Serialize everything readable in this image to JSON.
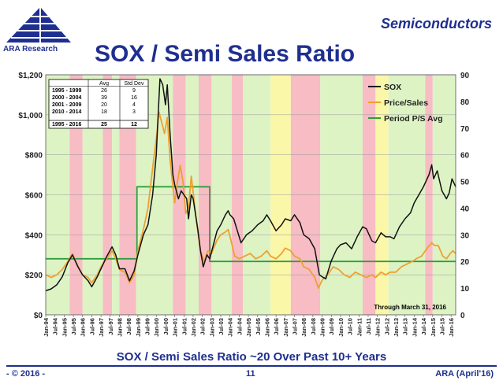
{
  "header": {
    "logo_text": "ARA Research",
    "section": "Semiconductors",
    "title": "SOX / Semi Sales Ratio"
  },
  "subtitle": "SOX / Semi Sales Ratio ~20 Over Past 10+ Years",
  "footer": {
    "left": "- © 2016 -",
    "page": "11",
    "right": "ARA (April'16)"
  },
  "colors": {
    "brand": "#1f2f8f",
    "sox": "#111111",
    "price_sales": "#f0a030",
    "period_avg": "#2e9e3e",
    "band_green": "#ddf3c4",
    "band_pink": "#f7bcc4",
    "band_yellow": "#fbf7a8"
  },
  "stats_table": {
    "headers": [
      "",
      "Avg",
      "Std Dev"
    ],
    "rows": [
      [
        "1995 - 1999",
        "26",
        "9"
      ],
      [
        "2000 - 2004",
        "39",
        "16"
      ],
      [
        "2001 - 2009",
        "20",
        "4"
      ],
      [
        "2010 - 2014",
        "18",
        "3"
      ],
      [
        "1995 - 2016",
        "25",
        "12"
      ]
    ]
  },
  "chart_data": {
    "type": "line",
    "note": "Through March 31, 2016",
    "x_range": [
      1994.0,
      2016.25
    ],
    "y_left": {
      "label": "",
      "range": [
        0,
        1200
      ],
      "ticks": [
        "$0",
        "$200",
        "$400",
        "$600",
        "$800",
        "$1,000",
        "$1,200"
      ]
    },
    "y_right": {
      "label": "",
      "range": [
        0,
        90
      ],
      "ticks": [
        "0",
        "10",
        "20",
        "30",
        "40",
        "50",
        "60",
        "70",
        "80",
        "90"
      ]
    },
    "x_ticks": [
      "Jan-94",
      "Jul-94",
      "Jan-95",
      "Jul-95",
      "Jan-96",
      "Jul-96",
      "Jan-97",
      "Jul-97",
      "Jan-98",
      "Jul-98",
      "Jan-99",
      "Jul-99",
      "Jan-00",
      "Jul-00",
      "Jan-01",
      "Jul-01",
      "Jan-02",
      "Jul-02",
      "Jan-03",
      "Jul-03",
      "Jan-04",
      "Jul-04",
      "Jan-05",
      "Jul-05",
      "Jan-06",
      "Jul-06",
      "Jan-07",
      "Jul-07",
      "Jan-08",
      "Jul-08",
      "Jan-09",
      "Jul-09",
      "Jan-10",
      "Jul-10",
      "Jan-11",
      "Jul-11",
      "Jan-12",
      "Jul-12",
      "Jan-13",
      "Jul-13",
      "Jan-14",
      "Jul-14",
      "Jan-15",
      "Jul-15",
      "Jan-16"
    ],
    "legend": [
      "SOX",
      "Price/Sales",
      "Period P/S Avg"
    ],
    "legend_position": "top-right",
    "bands": [
      {
        "from": 1994.0,
        "to": 1995.3,
        "kind": "green"
      },
      {
        "from": 1995.3,
        "to": 1996.0,
        "kind": "pink"
      },
      {
        "from": 1996.0,
        "to": 1997.1,
        "kind": "green"
      },
      {
        "from": 1997.1,
        "to": 1997.6,
        "kind": "pink"
      },
      {
        "from": 1997.6,
        "to": 1998.0,
        "kind": "green"
      },
      {
        "from": 1998.0,
        "to": 1998.9,
        "kind": "pink"
      },
      {
        "from": 1998.9,
        "to": 2000.9,
        "kind": "green"
      },
      {
        "from": 2000.9,
        "to": 2001.6,
        "kind": "pink"
      },
      {
        "from": 2001.6,
        "to": 2002.3,
        "kind": "green"
      },
      {
        "from": 2002.3,
        "to": 2003.0,
        "kind": "pink"
      },
      {
        "from": 2003.0,
        "to": 2004.1,
        "kind": "green"
      },
      {
        "from": 2004.1,
        "to": 2004.7,
        "kind": "pink"
      },
      {
        "from": 2004.7,
        "to": 2006.2,
        "kind": "green"
      },
      {
        "from": 2006.2,
        "to": 2007.3,
        "kind": "yellow"
      },
      {
        "from": 2007.3,
        "to": 2008.9,
        "kind": "pink"
      },
      {
        "from": 2008.9,
        "to": 2011.2,
        "kind": "green"
      },
      {
        "from": 2011.2,
        "to": 2011.9,
        "kind": "pink"
      },
      {
        "from": 2011.9,
        "to": 2012.6,
        "kind": "yellow"
      },
      {
        "from": 2012.6,
        "to": 2014.6,
        "kind": "green"
      },
      {
        "from": 2014.6,
        "to": 2015.0,
        "kind": "pink"
      },
      {
        "from": 2015.0,
        "to": 2016.25,
        "kind": "green"
      }
    ],
    "series": [
      {
        "name": "SOX",
        "axis": "left",
        "points": [
          [
            1994.0,
            120
          ],
          [
            1994.3,
            130
          ],
          [
            1994.6,
            150
          ],
          [
            1994.9,
            190
          ],
          [
            1995.2,
            260
          ],
          [
            1995.45,
            300
          ],
          [
            1995.75,
            240
          ],
          [
            1996.0,
            200
          ],
          [
            1996.3,
            170
          ],
          [
            1996.5,
            140
          ],
          [
            1996.8,
            190
          ],
          [
            1997.0,
            230
          ],
          [
            1997.3,
            290
          ],
          [
            1997.6,
            340
          ],
          [
            1997.8,
            300
          ],
          [
            1998.0,
            230
          ],
          [
            1998.3,
            230
          ],
          [
            1998.55,
            170
          ],
          [
            1998.8,
            220
          ],
          [
            1999.0,
            300
          ],
          [
            1999.3,
            400
          ],
          [
            1999.55,
            450
          ],
          [
            1999.8,
            600
          ],
          [
            2000.0,
            800
          ],
          [
            2000.1,
            1000
          ],
          [
            2000.2,
            1180
          ],
          [
            2000.35,
            1150
          ],
          [
            2000.5,
            1050
          ],
          [
            2000.6,
            1150
          ],
          [
            2000.75,
            900
          ],
          [
            2000.9,
            700
          ],
          [
            2001.0,
            650
          ],
          [
            2001.2,
            580
          ],
          [
            2001.35,
            620
          ],
          [
            2001.5,
            600
          ],
          [
            2001.65,
            580
          ],
          [
            2001.75,
            480
          ],
          [
            2001.9,
            600
          ],
          [
            2002.0,
            580
          ],
          [
            2002.25,
            430
          ],
          [
            2002.4,
            320
          ],
          [
            2002.55,
            240
          ],
          [
            2002.75,
            300
          ],
          [
            2002.9,
            280
          ],
          [
            2003.1,
            350
          ],
          [
            2003.3,
            420
          ],
          [
            2003.5,
            450
          ],
          [
            2003.75,
            500
          ],
          [
            2003.9,
            520
          ],
          [
            2004.0,
            500
          ],
          [
            2004.2,
            480
          ],
          [
            2004.4,
            420
          ],
          [
            2004.6,
            360
          ],
          [
            2004.9,
            400
          ],
          [
            2005.2,
            420
          ],
          [
            2005.5,
            450
          ],
          [
            2005.8,
            470
          ],
          [
            2006.0,
            500
          ],
          [
            2006.2,
            470
          ],
          [
            2006.5,
            420
          ],
          [
            2006.8,
            450
          ],
          [
            2007.0,
            480
          ],
          [
            2007.3,
            470
          ],
          [
            2007.5,
            500
          ],
          [
            2007.8,
            460
          ],
          [
            2008.0,
            400
          ],
          [
            2008.3,
            380
          ],
          [
            2008.6,
            330
          ],
          [
            2008.85,
            200
          ],
          [
            2009.0,
            190
          ],
          [
            2009.2,
            180
          ],
          [
            2009.5,
            270
          ],
          [
            2009.8,
            330
          ],
          [
            2010.0,
            350
          ],
          [
            2010.3,
            360
          ],
          [
            2010.6,
            330
          ],
          [
            2010.9,
            390
          ],
          [
            2011.2,
            440
          ],
          [
            2011.4,
            430
          ],
          [
            2011.7,
            370
          ],
          [
            2011.9,
            360
          ],
          [
            2012.2,
            410
          ],
          [
            2012.45,
            390
          ],
          [
            2012.7,
            390
          ],
          [
            2012.9,
            380
          ],
          [
            2013.2,
            440
          ],
          [
            2013.5,
            480
          ],
          [
            2013.8,
            510
          ],
          [
            2014.0,
            560
          ],
          [
            2014.25,
            600
          ],
          [
            2014.5,
            640
          ],
          [
            2014.8,
            700
          ],
          [
            2014.95,
            750
          ],
          [
            2015.05,
            680
          ],
          [
            2015.25,
            720
          ],
          [
            2015.5,
            620
          ],
          [
            2015.75,
            580
          ],
          [
            2015.9,
            610
          ],
          [
            2016.05,
            680
          ],
          [
            2016.25,
            640
          ]
        ]
      },
      {
        "name": "Price/Sales",
        "axis": "right",
        "points": [
          [
            1994.0,
            15
          ],
          [
            1994.3,
            14
          ],
          [
            1994.6,
            15
          ],
          [
            1994.9,
            17
          ],
          [
            1995.2,
            20
          ],
          [
            1995.45,
            23
          ],
          [
            1995.75,
            18
          ],
          [
            1996.0,
            15
          ],
          [
            1996.3,
            14
          ],
          [
            1996.5,
            12
          ],
          [
            1996.8,
            15
          ],
          [
            1997.0,
            18
          ],
          [
            1997.3,
            21
          ],
          [
            1997.6,
            24
          ],
          [
            1997.8,
            21
          ],
          [
            1998.0,
            17
          ],
          [
            1998.3,
            16
          ],
          [
            1998.55,
            12
          ],
          [
            1998.8,
            15
          ],
          [
            1999.0,
            24
          ],
          [
            1999.3,
            32
          ],
          [
            1999.55,
            40
          ],
          [
            1999.8,
            55
          ],
          [
            2000.0,
            66
          ],
          [
            2000.15,
            76
          ],
          [
            2000.3,
            72
          ],
          [
            2000.45,
            68
          ],
          [
            2000.6,
            74
          ],
          [
            2000.75,
            58
          ],
          [
            2000.9,
            48
          ],
          [
            2001.0,
            42
          ],
          [
            2001.15,
            50
          ],
          [
            2001.3,
            56
          ],
          [
            2001.45,
            50
          ],
          [
            2001.6,
            38
          ],
          [
            2001.75,
            40
          ],
          [
            2001.9,
            52
          ],
          [
            2002.0,
            46
          ],
          [
            2002.2,
            34
          ],
          [
            2002.4,
            24
          ],
          [
            2002.6,
            20
          ],
          [
            2002.8,
            24
          ],
          [
            2003.0,
            23
          ],
          [
            2003.3,
            28
          ],
          [
            2003.5,
            30
          ],
          [
            2003.75,
            31
          ],
          [
            2003.9,
            32
          ],
          [
            2004.05,
            28
          ],
          [
            2004.25,
            22
          ],
          [
            2004.5,
            21
          ],
          [
            2004.8,
            22
          ],
          [
            2005.1,
            23
          ],
          [
            2005.4,
            21
          ],
          [
            2005.7,
            22
          ],
          [
            2006.0,
            24
          ],
          [
            2006.2,
            22
          ],
          [
            2006.5,
            21
          ],
          [
            2006.8,
            23
          ],
          [
            2007.0,
            25
          ],
          [
            2007.3,
            24
          ],
          [
            2007.5,
            22
          ],
          [
            2007.8,
            21
          ],
          [
            2008.0,
            18
          ],
          [
            2008.3,
            17
          ],
          [
            2008.6,
            14
          ],
          [
            2008.8,
            10
          ],
          [
            2009.0,
            13
          ],
          [
            2009.3,
            15
          ],
          [
            2009.6,
            18
          ],
          [
            2009.9,
            17
          ],
          [
            2010.2,
            15
          ],
          [
            2010.5,
            14
          ],
          [
            2010.8,
            16
          ],
          [
            2011.1,
            15
          ],
          [
            2011.4,
            14
          ],
          [
            2011.7,
            15
          ],
          [
            2011.9,
            14
          ],
          [
            2012.2,
            16
          ],
          [
            2012.45,
            15
          ],
          [
            2012.7,
            16
          ],
          [
            2013.0,
            16
          ],
          [
            2013.3,
            18
          ],
          [
            2013.6,
            19
          ],
          [
            2013.9,
            20
          ],
          [
            2014.1,
            21
          ],
          [
            2014.4,
            22
          ],
          [
            2014.7,
            25
          ],
          [
            2014.95,
            27
          ],
          [
            2015.1,
            26
          ],
          [
            2015.3,
            26
          ],
          [
            2015.55,
            22
          ],
          [
            2015.75,
            21
          ],
          [
            2015.95,
            23
          ],
          [
            2016.1,
            24
          ],
          [
            2016.25,
            23
          ]
        ]
      },
      {
        "name": "Period P/S Avg",
        "axis": "right",
        "points": [
          [
            1994.0,
            21
          ],
          [
            1998.95,
            21
          ],
          [
            1998.95,
            48
          ],
          [
            2002.9,
            48
          ],
          [
            2002.9,
            20
          ],
          [
            2016.25,
            20
          ]
        ]
      }
    ]
  }
}
